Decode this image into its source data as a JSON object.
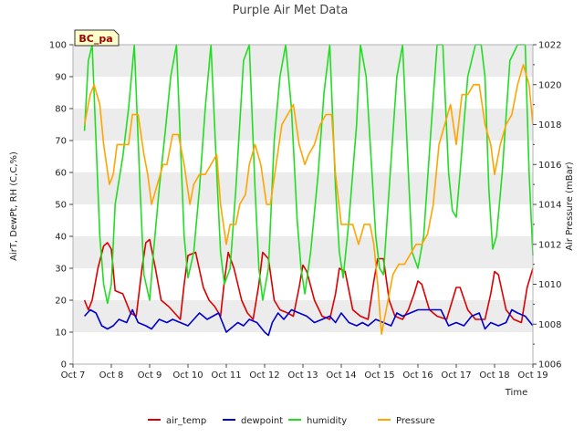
{
  "chart_data": {
    "type": "line",
    "title": "Purple Air Met Data",
    "badge": "BC_pa",
    "xlabel": "Time",
    "ylabel": "AirT, DewPt, RH (C,C,%)",
    "ylabel_right": "Air Pressure (mBar)",
    "ylim": [
      0,
      100
    ],
    "ylim_right": [
      1006,
      1022
    ],
    "xlim": [
      7,
      19
    ],
    "x_ticks": [
      7,
      8,
      9,
      10,
      11,
      12,
      13,
      14,
      15,
      16,
      17,
      18,
      19
    ],
    "x_tick_labels": [
      "Oct 7",
      "Oct 8",
      "Oct 9",
      "Oct 10",
      "Oct 11",
      "Oct 12",
      "Oct 13",
      "Oct 14",
      "Oct 15",
      "Oct 16",
      "Oct 17",
      "Oct 18",
      "Oct 19"
    ],
    "y_ticks": [
      0,
      10,
      20,
      30,
      40,
      50,
      60,
      70,
      80,
      90,
      100
    ],
    "y_ticks_right": [
      1006,
      1008,
      1010,
      1012,
      1014,
      1016,
      1018,
      1020,
      1022
    ],
    "grid_bands": true,
    "legend_position": "bottom",
    "x_unit": "day of October",
    "series": [
      {
        "name": "air_temp",
        "axis": "left",
        "color": "#dd0000",
        "x": [
          7.3,
          7.4,
          7.5,
          7.65,
          7.8,
          7.9,
          8.0,
          8.1,
          8.3,
          8.5,
          8.65,
          8.8,
          8.9,
          9.0,
          9.15,
          9.3,
          9.5,
          9.65,
          9.8,
          9.9,
          10.0,
          10.2,
          10.4,
          10.55,
          10.7,
          10.85,
          10.95,
          11.05,
          11.2,
          11.4,
          11.55,
          11.7,
          11.85,
          11.95,
          12.1,
          12.25,
          12.4,
          12.6,
          12.75,
          12.9,
          13.0,
          13.1,
          13.3,
          13.5,
          13.7,
          13.85,
          13.95,
          14.1,
          14.3,
          14.5,
          14.7,
          14.85,
          14.95,
          15.1,
          15.25,
          15.4,
          15.6,
          15.75,
          15.9,
          16.0,
          16.1,
          16.3,
          16.5,
          16.75,
          16.9,
          17.0,
          17.1,
          17.3,
          17.5,
          17.75,
          17.9,
          18.0,
          18.1,
          18.3,
          18.5,
          18.7,
          18.85,
          19.0
        ],
        "y": [
          20,
          17,
          20,
          30,
          37,
          38,
          36,
          23,
          22,
          16,
          15,
          30,
          38,
          39,
          30,
          20,
          18,
          16,
          14,
          25,
          34,
          35,
          24,
          20,
          18,
          15,
          26,
          35,
          30,
          20,
          16,
          14,
          25,
          35,
          33,
          20,
          17,
          16,
          15,
          24,
          31,
          29,
          20,
          15,
          14,
          22,
          30,
          29,
          17,
          15,
          14,
          26,
          33,
          33,
          20,
          15,
          14,
          17,
          22,
          26,
          25,
          17,
          15,
          14,
          20,
          24,
          24,
          17,
          14,
          14,
          22,
          29,
          28,
          17,
          14,
          13,
          24,
          30
        ]
      },
      {
        "name": "dewpoint",
        "axis": "left",
        "color": "#0000cc",
        "x": [
          7.3,
          7.45,
          7.6,
          7.75,
          7.9,
          8.05,
          8.2,
          8.4,
          8.55,
          8.7,
          8.9,
          9.05,
          9.25,
          9.45,
          9.6,
          9.8,
          10.0,
          10.15,
          10.3,
          10.5,
          10.65,
          10.8,
          11.0,
          11.1,
          11.3,
          11.45,
          11.6,
          11.8,
          12.0,
          12.1,
          12.2,
          12.35,
          12.5,
          12.7,
          12.9,
          13.1,
          13.3,
          13.5,
          13.7,
          13.85,
          14.0,
          14.2,
          14.4,
          14.55,
          14.7,
          14.9,
          15.1,
          15.3,
          15.45,
          15.6,
          15.8,
          16.0,
          16.2,
          16.4,
          16.6,
          16.8,
          17.0,
          17.2,
          17.4,
          17.6,
          17.75,
          17.9,
          18.1,
          18.3,
          18.45,
          18.6,
          18.8,
          19.0
        ],
        "y": [
          15,
          17,
          16,
          12,
          11,
          12,
          14,
          13,
          17,
          13,
          12,
          11,
          14,
          13,
          14,
          13,
          12,
          14,
          16,
          14,
          15,
          16,
          10,
          11,
          13,
          12,
          14,
          13,
          10,
          9,
          13,
          16,
          14,
          17,
          16,
          15,
          13,
          14,
          15,
          13,
          16,
          13,
          12,
          13,
          12,
          14,
          13,
          12,
          16,
          15,
          16,
          17,
          17,
          17,
          17,
          12,
          13,
          12,
          15,
          16,
          11,
          13,
          12,
          13,
          17,
          16,
          15,
          12
        ]
      },
      {
        "name": "humidity",
        "axis": "left",
        "color": "#22dd22",
        "x": [
          7.3,
          7.4,
          7.5,
          7.6,
          7.7,
          7.8,
          7.9,
          8.0,
          8.1,
          8.3,
          8.45,
          8.6,
          8.75,
          8.85,
          9.0,
          9.1,
          9.25,
          9.4,
          9.55,
          9.7,
          9.8,
          9.9,
          10.0,
          10.15,
          10.3,
          10.45,
          10.6,
          10.75,
          10.85,
          10.95,
          11.1,
          11.25,
          11.45,
          11.6,
          11.75,
          11.85,
          11.95,
          12.1,
          12.25,
          12.4,
          12.55,
          12.7,
          12.85,
          12.95,
          13.05,
          13.2,
          13.4,
          13.55,
          13.7,
          13.85,
          13.95,
          14.05,
          14.2,
          14.4,
          14.5,
          14.65,
          14.8,
          14.9,
          15.0,
          15.1,
          15.25,
          15.45,
          15.6,
          15.75,
          15.85,
          16.0,
          16.15,
          16.35,
          16.5,
          16.65,
          16.8,
          16.9,
          17.0,
          17.1,
          17.3,
          17.5,
          17.65,
          17.75,
          17.85,
          17.95,
          18.05,
          18.2,
          18.4,
          18.6,
          18.8,
          18.9,
          19.0
        ],
        "y": [
          73,
          95,
          100,
          70,
          40,
          25,
          19,
          25,
          50,
          65,
          80,
          100,
          55,
          28,
          20,
          35,
          55,
          72,
          90,
          100,
          70,
          40,
          27,
          35,
          55,
          80,
          100,
          60,
          35,
          25,
          30,
          55,
          95,
          100,
          55,
          30,
          20,
          30,
          70,
          90,
          100,
          80,
          45,
          30,
          22,
          35,
          60,
          85,
          100,
          55,
          35,
          27,
          45,
          75,
          100,
          90,
          60,
          40,
          30,
          28,
          55,
          90,
          100,
          60,
          35,
          30,
          40,
          75,
          100,
          100,
          60,
          48,
          46,
          60,
          90,
          100,
          100,
          90,
          55,
          36,
          40,
          60,
          95,
          100,
          100,
          60,
          34
        ]
      },
      {
        "name": "Pressure",
        "axis": "right",
        "color": "#ffa500",
        "x": [
          7.3,
          7.35,
          7.45,
          7.55,
          7.7,
          7.8,
          7.95,
          8.05,
          8.15,
          8.3,
          8.45,
          8.55,
          8.7,
          8.85,
          8.95,
          9.05,
          9.2,
          9.35,
          9.45,
          9.6,
          9.75,
          9.9,
          10.05,
          10.15,
          10.3,
          10.45,
          10.6,
          10.75,
          10.85,
          11.0,
          11.1,
          11.25,
          11.35,
          11.5,
          11.6,
          11.75,
          11.9,
          12.05,
          12.15,
          12.3,
          12.45,
          12.6,
          12.75,
          12.9,
          13.05,
          13.15,
          13.3,
          13.45,
          13.6,
          13.75,
          13.85,
          14.0,
          14.15,
          14.3,
          14.45,
          14.6,
          14.75,
          14.85,
          14.95,
          15.05,
          15.2,
          15.35,
          15.5,
          15.65,
          15.8,
          15.95,
          16.1,
          16.25,
          16.4,
          16.55,
          16.7,
          16.85,
          17.0,
          17.15,
          17.3,
          17.45,
          17.6,
          17.75,
          17.9,
          18.0,
          18.15,
          18.3,
          18.45,
          18.6,
          18.75,
          18.9,
          19.0
        ],
        "y": [
          1018,
          1018.5,
          1019.5,
          1020,
          1019,
          1017,
          1015,
          1015.5,
          1017,
          1017,
          1017,
          1018.5,
          1018.5,
          1016.5,
          1015.5,
          1014,
          1015,
          1016,
          1016,
          1017.5,
          1017.5,
          1016,
          1014,
          1015,
          1015.5,
          1015.5,
          1016,
          1016.5,
          1014,
          1012,
          1013,
          1013,
          1014,
          1014.5,
          1016,
          1017,
          1016,
          1014,
          1014,
          1016,
          1018,
          1018.5,
          1019,
          1017,
          1016,
          1016.5,
          1017,
          1018,
          1018.5,
          1018.5,
          1015.5,
          1013,
          1013,
          1013,
          1012,
          1013,
          1013,
          1012,
          1010,
          1007.5,
          1009,
          1010.5,
          1011,
          1011,
          1011.5,
          1012,
          1012,
          1012.5,
          1014,
          1017,
          1018,
          1019,
          1017,
          1019.5,
          1019.5,
          1020,
          1020,
          1018,
          1017,
          1015.5,
          1017,
          1018,
          1018.5,
          1020,
          1021,
          1020,
          1018
        ]
      }
    ]
  }
}
